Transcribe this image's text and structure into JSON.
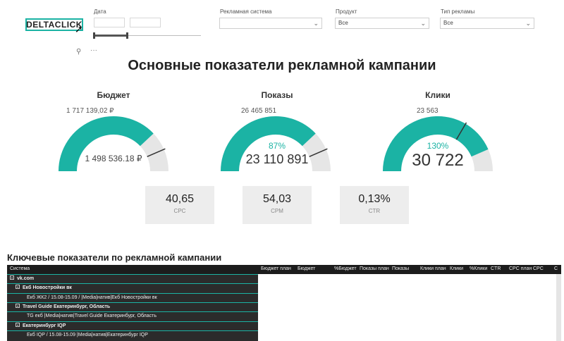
{
  "logo": "DELTACLICK",
  "filters": {
    "date_label": "Дата",
    "ad_system_label": "Рекламная система",
    "ad_system_value": "",
    "product_label": "Продукт",
    "product_value": "Все",
    "ad_type_label": "Тип рекламы",
    "ad_type_value": "Все"
  },
  "header": {
    "title": "Основные показатели рекламной кампании"
  },
  "gauges": [
    {
      "title": "Бюджет",
      "target": "1 717 139,02 ₽",
      "value": "1 498 536.18 ₽",
      "percent": "",
      "fraction": 0.873,
      "color": "#1bb3a4"
    },
    {
      "title": "Показы",
      "target": "26 465 851",
      "value": "23 110 891",
      "percent": "87%",
      "fraction": 0.873,
      "color": "#1bb3a4"
    },
    {
      "title": "Клики",
      "target": "23 563",
      "value": "30 722",
      "percent": "130%",
      "fraction": 1.3,
      "color": "#1bb3a4"
    }
  ],
  "kpis": [
    {
      "value": "40,65",
      "label": "CPC"
    },
    {
      "value": "54,03",
      "label": "CPM"
    },
    {
      "value": "0,13%",
      "label": "CTR"
    }
  ],
  "table": {
    "title": "Ключевые показатели по рекламной кампании",
    "columns": [
      "Система",
      "Бюджет план",
      "Бюджет",
      "%Бюджет",
      "Показы план",
      "Показы",
      "Клики план",
      "Клики",
      "%Клики",
      "CTR",
      "CPC план",
      "CPC",
      "C"
    ],
    "rows": [
      {
        "text": "vk.com",
        "level": 0,
        "bold": true,
        "expander": true
      },
      {
        "text": "Екб Новостройки вк",
        "level": 1,
        "bold": true,
        "expander": true
      },
      {
        "text": "Екб ЖК2 / 15.08-15.09 / |Media|натив|Екб Новостройки вк",
        "level": 2,
        "bold": false,
        "expander": false
      },
      {
        "text": "Travel Guide Екатеринбург, Область",
        "level": 1,
        "bold": true,
        "expander": true
      },
      {
        "text": "TG екб |Media|натив|Travel Guide Екатеринбург, Область",
        "level": 2,
        "bold": false,
        "expander": false
      },
      {
        "text": "Екатеринбург IQP",
        "level": 1,
        "bold": true,
        "expander": true
      },
      {
        "text": "Екб IQP / 15.08-15.09 |Media|натив|Екатеринбург IQP",
        "level": 2,
        "bold": false,
        "expander": false
      }
    ]
  }
}
